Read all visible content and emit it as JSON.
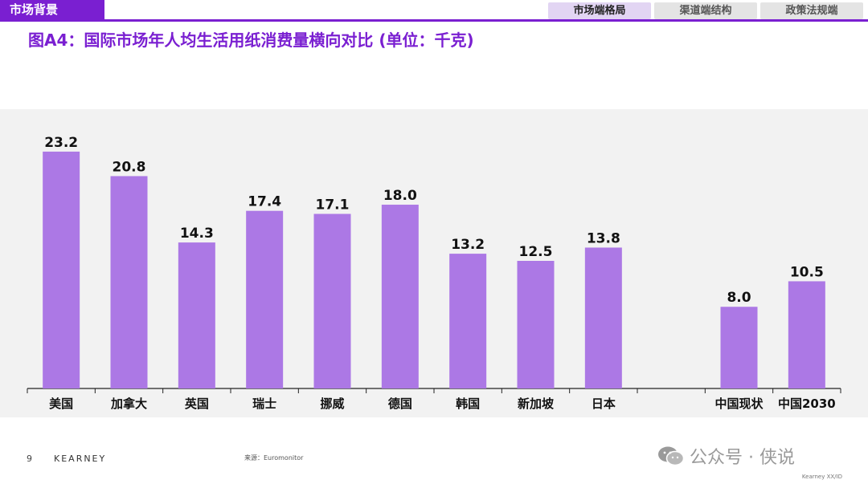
{
  "header": {
    "section_tag": "市场背景",
    "nav_tabs": [
      "市场端格局",
      "渠道端结构",
      "政策法规端"
    ],
    "active_tab": 0
  },
  "title": "图A4：国际市场年人均生活用纸消费量横向对比 (单位：千克)",
  "colors": {
    "accent": "#7a1fd1",
    "bar": "#ac78e5",
    "panel": "#f2f2f2"
  },
  "chart_data": {
    "type": "bar",
    "categories": [
      "美国",
      "加拿大",
      "英国",
      "瑞士",
      "挪威",
      "德国",
      "韩国",
      "新加坡",
      "日本",
      "中国现状",
      "中国2030"
    ],
    "values": [
      23.2,
      20.8,
      14.3,
      17.4,
      17.1,
      18.0,
      13.2,
      12.5,
      13.8,
      8.0,
      10.5
    ],
    "value_labels": [
      "23.2",
      "20.8",
      "14.3",
      "17.4",
      "17.1",
      "18.0",
      "13.2",
      "12.5",
      "13.8",
      "8.0",
      "10.5"
    ],
    "gap_before_index": 9,
    "ylim": [
      0,
      25
    ],
    "title": "",
    "xlabel": "",
    "ylabel": "",
    "grid": false,
    "legend": "none"
  },
  "footer": {
    "page": "9",
    "brand": "KEARNEY",
    "source": "来源：Euromonitor",
    "watermark": "公众号 · 侠说",
    "code": "Kearney XX/ID"
  }
}
